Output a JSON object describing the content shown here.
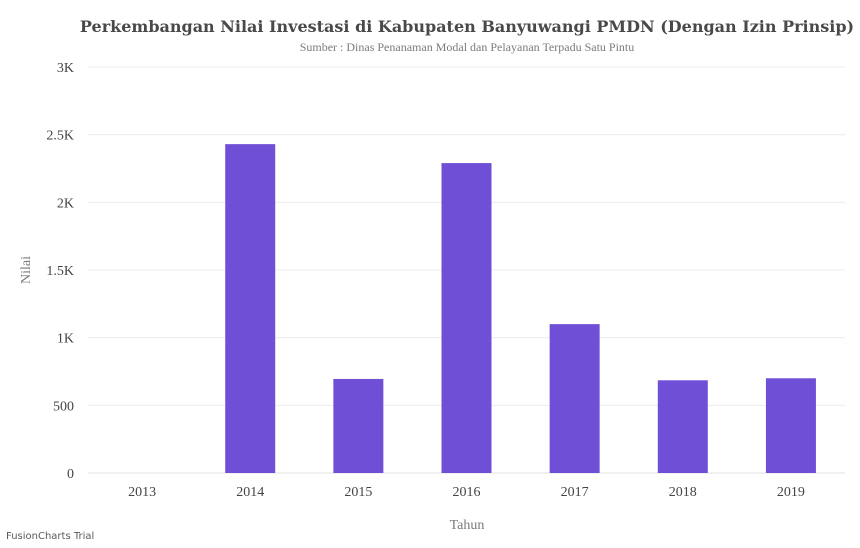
{
  "chart_data": {
    "type": "bar",
    "title": "Perkembangan Nilai Investasi di Kabupaten Banyuwangi PMDN (Dengan Izin Prinsip)",
    "subtitle": "Sumber : Dinas Penanaman Modal dan Pelayanan Terpadu Satu Pintu",
    "xlabel": "Tahun",
    "ylabel": "Nilai",
    "categories": [
      "2013",
      "2014",
      "2015",
      "2016",
      "2017",
      "2018",
      "2019"
    ],
    "values": [
      0,
      2430,
      695,
      2290,
      1100,
      685,
      700
    ],
    "ylim": [
      0,
      3000
    ],
    "yticks": [
      0,
      500,
      1000,
      1500,
      2000,
      2500,
      3000
    ],
    "ytick_labels": [
      "0",
      "500",
      "1K",
      "1.5K",
      "2K",
      "2.5K",
      "3K"
    ],
    "bar_color": "#6e4fd6",
    "grid": true
  },
  "credit": "FusionCharts Trial"
}
